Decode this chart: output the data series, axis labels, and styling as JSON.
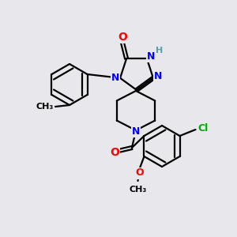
{
  "bg_color": "#e8e8ec",
  "atom_colors": {
    "O": "#ff0000",
    "N": "#0000ff",
    "Cl": "#00aa00",
    "H": "#5f9ea0",
    "C": "#000000"
  },
  "bond_color": "#000000",
  "font_size": 9,
  "fig_size": [
    3.0,
    3.0
  ],
  "dpi": 100
}
